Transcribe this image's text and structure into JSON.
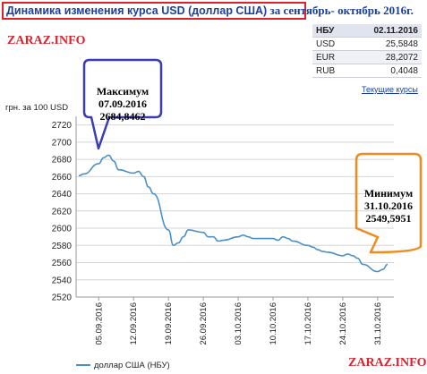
{
  "title": {
    "part1": "Динамика изменения курса USD (доллар США)",
    "part2": " за сентябрь- октябрь 2016г."
  },
  "watermark": "ZARAZ.INFO",
  "rates_table": {
    "header_label": "НБУ",
    "header_date": "02.11.2016",
    "rows": [
      {
        "currency": "USD",
        "value": "25,5848"
      },
      {
        "currency": "EUR",
        "value": "28,2072"
      },
      {
        "currency": "RUB",
        "value": "0,4048"
      }
    ],
    "link": "Текущие курсы"
  },
  "callouts": {
    "max": {
      "line1": "Максимум",
      "line2": "07.09.2016",
      "line3": "2684,8462"
    },
    "min": {
      "line1": "Минимум",
      "line2": "31.10.2016",
      "line3": "2549,5951"
    }
  },
  "colors": {
    "line": "#4a90c8",
    "title_border": "#d9232d",
    "max_callout": "#3c3cb4",
    "min_callout": "#f08a1e"
  },
  "chart_data": {
    "type": "line",
    "ylabel": "грн. за 100 USD",
    "ylim": [
      2520,
      2730
    ],
    "yticks": [
      2520,
      2540,
      2560,
      2580,
      2600,
      2620,
      2640,
      2660,
      2680,
      2700,
      2720
    ],
    "xticks": [
      "05.09.2016",
      "12.09.2016",
      "19.09.2016",
      "26.09.2016",
      "03.10.2016",
      "10.10.2016",
      "17.10.2016",
      "24.10.2016",
      "31.10.2016"
    ],
    "grid": "horizontal",
    "legend": "bottom-left",
    "series": [
      {
        "name": "доллар США (НБУ)",
        "x": [
          "01.09",
          "02.09",
          "05.09",
          "06.09",
          "07.09",
          "08.09",
          "09.09",
          "12.09",
          "13.09",
          "14.09",
          "15.09",
          "16.09",
          "19.09",
          "20.09",
          "21.09",
          "22.09",
          "23.09",
          "26.09",
          "27.09",
          "28.09",
          "29.09",
          "30.09",
          "03.10",
          "04.10",
          "05.10",
          "06.10",
          "07.10",
          "10.10",
          "11.10",
          "12.10",
          "13.10",
          "14.10",
          "17.10",
          "18.10",
          "19.10",
          "20.10",
          "21.10",
          "24.10",
          "25.10",
          "26.10",
          "27.10",
          "28.10",
          "31.10",
          "01.11",
          "02.11"
        ],
        "values": [
          2661,
          2663,
          2675,
          2682,
          2684.8,
          2678,
          2668,
          2664,
          2666,
          2660,
          2648,
          2640,
          2598,
          2580,
          2583,
          2590,
          2598,
          2595,
          2590,
          2590,
          2585,
          2586,
          2590,
          2592,
          2590,
          2588,
          2588,
          2588,
          2586,
          2590,
          2588,
          2585,
          2580,
          2578,
          2575,
          2573,
          2572,
          2568,
          2570,
          2568,
          2565,
          2558,
          2549.6,
          2552,
          2558
        ]
      }
    ]
  }
}
